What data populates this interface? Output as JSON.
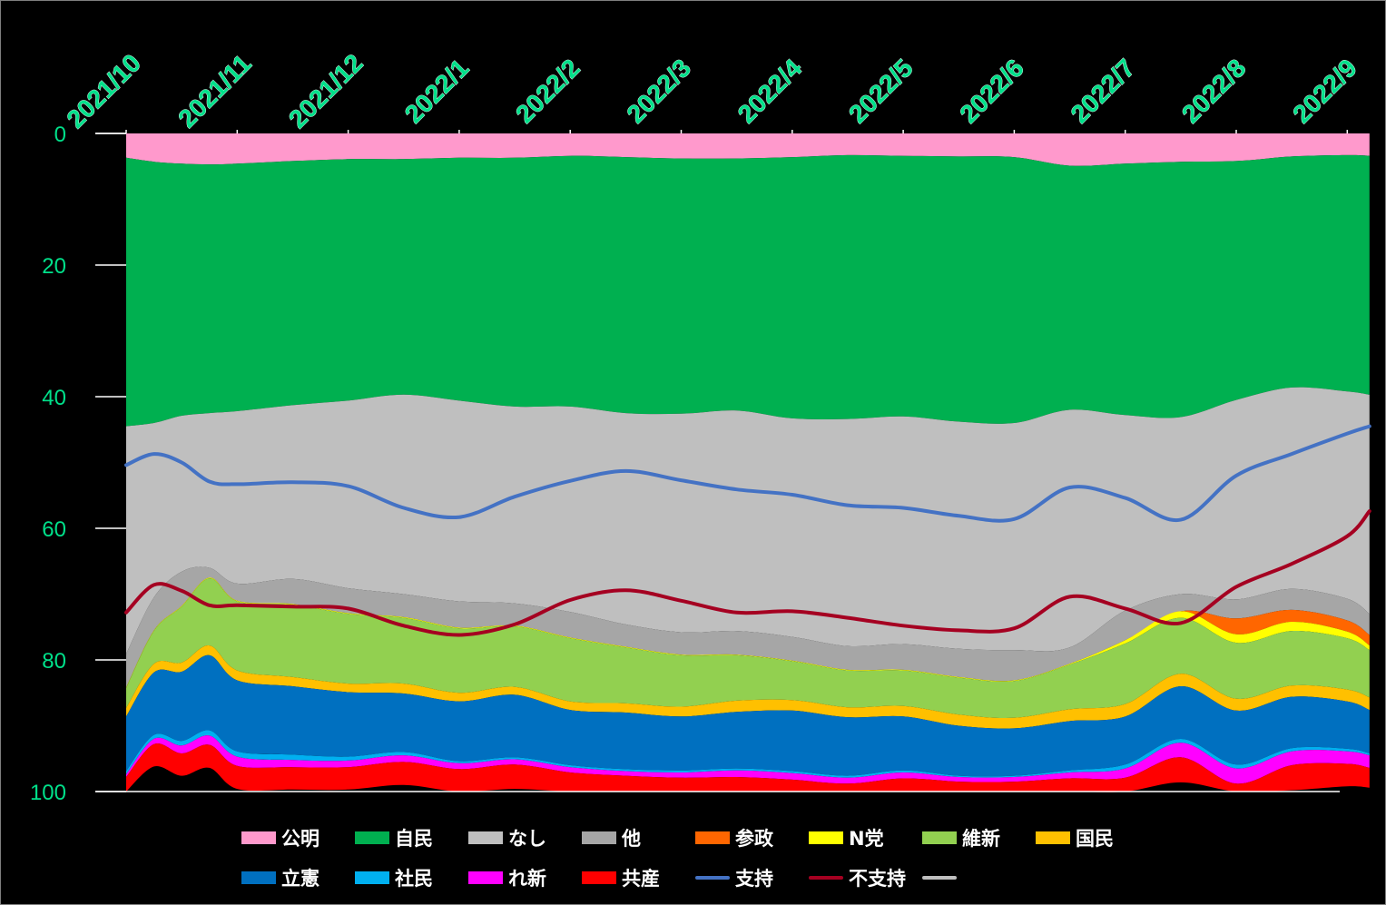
{
  "chart_data": {
    "type": "area",
    "title": "",
    "xlabel": "",
    "ylabel": "",
    "ylim": [
      0,
      100
    ],
    "y_inverted": true,
    "stacked": true,
    "x_tick_labels": [
      "2021/10",
      "2021/11",
      "2021/12",
      "2022/1",
      "2022/2",
      "2022/3",
      "2022/4",
      "2022/5",
      "2022/6",
      "2022/7",
      "2022/8",
      "2022/9"
    ],
    "y_tick_labels": [
      "0",
      "20",
      "40",
      "60",
      "80",
      "100"
    ],
    "y_ticks": [
      0,
      20,
      40,
      60,
      80,
      100
    ],
    "grid": false,
    "legend_position": "bottom",
    "colors": {
      "axis_text": "#00e08a",
      "axis_line": "#ffffff",
      "background": "#000000"
    },
    "x": [
      0,
      0.25,
      0.5,
      0.75,
      1,
      1.5,
      2,
      2.5,
      3,
      3.5,
      4,
      4.5,
      5,
      5.5,
      6,
      6.5,
      7,
      7.5,
      8,
      8.5,
      9,
      9.5,
      10,
      10.5,
      11,
      11.2
    ],
    "series": [
      {
        "name": "公明",
        "color": "#ff99cc",
        "values": [
          3.7,
          4.3,
          4.6,
          4.7,
          4.6,
          4.2,
          3.9,
          3.9,
          3.7,
          3.7,
          3.4,
          3.6,
          3.8,
          3.8,
          3.6,
          3.3,
          3.4,
          3.5,
          3.6,
          4.9,
          4.6,
          4.3,
          4.2,
          3.5,
          3.3,
          3.4
        ]
      },
      {
        "name": "自民",
        "color": "#00b050",
        "values": [
          40.8,
          39.7,
          38.3,
          37.8,
          37.6,
          37.1,
          36.7,
          35.8,
          36.9,
          37.8,
          38.1,
          38.9,
          38.8,
          38.3,
          39.7,
          40.1,
          39.6,
          40.3,
          40.4,
          37.1,
          38.2,
          38.8,
          36.3,
          35.1,
          35.9,
          36.3
        ]
      },
      {
        "name": "なし",
        "color": "#bfbfbf",
        "values": [
          34.6,
          26.5,
          23.7,
          23.5,
          26.2,
          26.4,
          28.5,
          30.3,
          30.5,
          29.9,
          31.2,
          32.1,
          33.2,
          33.5,
          33.2,
          34.5,
          34.6,
          34.5,
          34.5,
          36.1,
          29.7,
          26.9,
          30.3,
          30.6,
          31.5,
          33.3
        ]
      },
      {
        "name": "他",
        "color": "#a6a6a6",
        "values": [
          5.1,
          5.0,
          5.2,
          1.5,
          2.6,
          3.8,
          3.8,
          3.5,
          4.0,
          3.4,
          3.9,
          3.4,
          3.4,
          3.6,
          3.6,
          3.6,
          3.9,
          4.3,
          4.6,
          2.5,
          4.5,
          2.6,
          2.9,
          3.2,
          3.3,
          3.2
        ]
      },
      {
        "name": "参政",
        "color": "#ff6600",
        "values": [
          0,
          0,
          0,
          0,
          0,
          0,
          0,
          0,
          0,
          0,
          0,
          0,
          0,
          0,
          0,
          0,
          0,
          0,
          0,
          0,
          0,
          0,
          2.4,
          1.8,
          1.7,
          1.6
        ]
      },
      {
        "name": "N党",
        "color": "#ffff00",
        "values": [
          0.1,
          0.1,
          0.1,
          0.1,
          0.1,
          0.1,
          0.1,
          0.1,
          0.1,
          0.1,
          0.1,
          0.1,
          0.1,
          0.1,
          0.1,
          0.1,
          0.1,
          0.1,
          0.1,
          0.1,
          0.5,
          1.0,
          1.3,
          1.4,
          1.0,
          0.7
        ]
      },
      {
        "name": "維新",
        "color": "#92d050",
        "values": [
          3.0,
          5.0,
          8.5,
          10.2,
          10.5,
          11.0,
          10.6,
          10.0,
          9.8,
          9.2,
          9.6,
          8.5,
          7.8,
          6.9,
          5.9,
          5.6,
          5.4,
          5.6,
          5.6,
          6.8,
          9.2,
          8.5,
          8.5,
          8.3,
          7.8,
          7.2
        ]
      },
      {
        "name": "国民",
        "color": "#ffc000",
        "values": [
          1.3,
          1.3,
          1.4,
          1.5,
          1.5,
          1.4,
          1.3,
          1.5,
          1.3,
          1.2,
          1.3,
          1.4,
          1.5,
          1.7,
          1.6,
          1.5,
          1.6,
          1.7,
          1.6,
          1.8,
          1.9,
          1.9,
          1.8,
          1.7,
          1.8,
          1.9
        ]
      },
      {
        "name": "立憲",
        "color": "#0070c0",
        "values": [
          8.3,
          9.5,
          10.5,
          11.4,
          10.8,
          10.4,
          9.8,
          8.9,
          9.1,
          9.5,
          8.4,
          8.6,
          8.2,
          8.6,
          9.2,
          8.9,
          8.2,
          7.6,
          7.2,
          7.5,
          7.3,
          8.0,
          8.2,
          7.8,
          7.2,
          6.6
        ]
      },
      {
        "name": "社民",
        "color": "#00b0f0",
        "values": [
          0.5,
          0.6,
          0.7,
          0.8,
          0.8,
          0.8,
          0.6,
          0.5,
          0.3,
          0.3,
          0.3,
          0.3,
          0.3,
          0.3,
          0.3,
          0.3,
          0.3,
          0.2,
          0.2,
          0.3,
          0.6,
          0.6,
          0.6,
          0.5,
          0.4,
          0.3
        ]
      },
      {
        "name": "れ新",
        "color": "#ff00ff",
        "values": [
          0.4,
          0.8,
          1.2,
          1.4,
          1.4,
          1.1,
          1.0,
          1.0,
          0.9,
          0.8,
          0.8,
          0.7,
          0.8,
          1.0,
          1.0,
          0.9,
          0.9,
          0.7,
          0.7,
          0.9,
          1.4,
          2.2,
          2.3,
          2.1,
          1.9,
          1.9
        ]
      },
      {
        "name": "共産",
        "color": "#ff0000",
        "values": [
          3.3,
          3.4,
          3.4,
          3.5,
          3.5,
          3.4,
          3.4,
          3.5,
          3.5,
          3.7,
          3.6,
          3.7,
          3.6,
          3.4,
          3.4,
          3.3,
          3.2,
          3.0,
          2.7,
          3.6,
          4.0,
          3.8,
          3.7,
          3.8,
          3.4,
          3.0
        ]
      }
    ],
    "lines": [
      {
        "name": "支持",
        "color": "#4472c4",
        "values": [
          50.4,
          48.7,
          50.0,
          52.9,
          53.3,
          53.0,
          53.6,
          56.9,
          58.3,
          55.2,
          52.8,
          51.3,
          52.7,
          54.1,
          54.9,
          56.5,
          56.9,
          58.1,
          58.6,
          53.8,
          55.4,
          58.7,
          52.0,
          48.7,
          45.6,
          44.5
        ]
      },
      {
        "name": "不支持",
        "color": "#a50021",
        "values": [
          72.8,
          68.6,
          69.5,
          71.7,
          71.7,
          71.9,
          72.2,
          74.8,
          76.2,
          74.6,
          70.9,
          69.4,
          71.0,
          72.8,
          72.6,
          73.6,
          74.8,
          75.5,
          75.2,
          70.4,
          72.2,
          74.4,
          68.9,
          65.4,
          61.2,
          57.4
        ]
      }
    ],
    "legend": [
      {
        "label": "公明",
        "kind": "box",
        "color": "#ff99cc"
      },
      {
        "label": "自民",
        "kind": "box",
        "color": "#00b050"
      },
      {
        "label": "なし",
        "kind": "box",
        "color": "#bfbfbf"
      },
      {
        "label": "他",
        "kind": "box",
        "color": "#a6a6a6"
      },
      {
        "label": "参政",
        "kind": "box",
        "color": "#ff6600"
      },
      {
        "label": "N党",
        "kind": "box",
        "color": "#ffff00"
      },
      {
        "label": "維新",
        "kind": "box",
        "color": "#92d050"
      },
      {
        "label": "国民",
        "kind": "box",
        "color": "#ffc000"
      },
      {
        "label": "立憲",
        "kind": "box",
        "color": "#0070c0"
      },
      {
        "label": "社民",
        "kind": "box",
        "color": "#00b0f0"
      },
      {
        "label": "れ新",
        "kind": "box",
        "color": "#ff00ff"
      },
      {
        "label": "共産",
        "kind": "box",
        "color": "#ff0000"
      },
      {
        "label": "支持",
        "kind": "line",
        "color": "#4472c4"
      },
      {
        "label": "不支持",
        "kind": "line",
        "color": "#a50021"
      },
      {
        "label": "",
        "kind": "line",
        "color": "#bfbfbf"
      }
    ]
  }
}
